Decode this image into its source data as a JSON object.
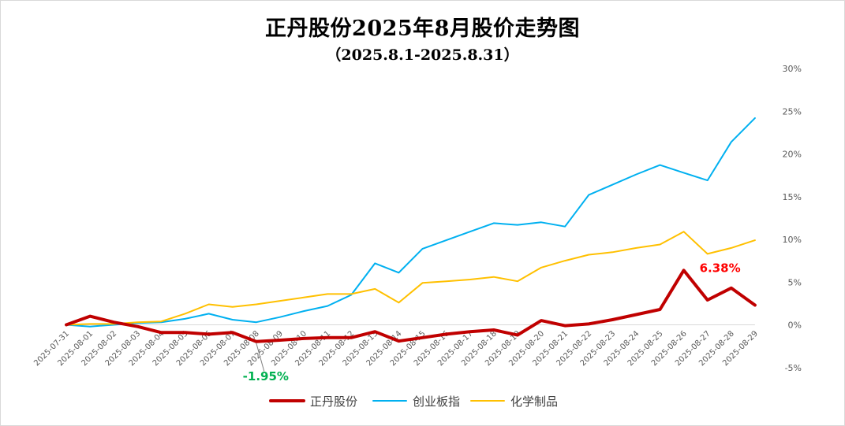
{
  "chart_data": {
    "type": "line",
    "title": "正丹股份2025年8月股价走势图",
    "subtitle": "（2025.8.1-2025.8.31）",
    "categories": [
      "2025-07-31",
      "2025-08-01",
      "2025-08-02",
      "2025-08-03",
      "2025-08-04",
      "2025-08-05",
      "2025-08-06",
      "2025-08-07",
      "2025-08-08",
      "2025-08-09",
      "2025-08-10",
      "2025-08-11",
      "2025-08-12",
      "2025-08-13",
      "2025-08-14",
      "2025-08-15",
      "2025-08-16",
      "2025-08-17",
      "2025-08-18",
      "2025-08-19",
      "2025-08-20",
      "2025-08-21",
      "2025-08-22",
      "2025-08-23",
      "2025-08-24",
      "2025-08-25",
      "2025-08-26",
      "2025-08-27",
      "2025-08-28",
      "2025-08-29"
    ],
    "y_ticks": [
      "30%",
      "25%",
      "20%",
      "15%",
      "10%",
      "5%",
      "0%",
      "-5%"
    ],
    "ylim": [
      -5,
      30
    ],
    "series": [
      {
        "name": "正丹股份",
        "color": "#C00000",
        "values": [
          0.0,
          1.0,
          0.3,
          -0.2,
          -0.9,
          -0.9,
          -1.1,
          -0.9,
          -1.95,
          -1.8,
          -1.6,
          -1.5,
          -1.5,
          -0.8,
          -1.9,
          -1.5,
          -1.1,
          -0.8,
          -0.6,
          -1.2,
          0.5,
          -0.1,
          0.1,
          0.6,
          1.2,
          1.8,
          6.38,
          2.9,
          4.3,
          2.3
        ]
      },
      {
        "name": "创业板指",
        "color": "#00B0F0",
        "values": [
          0.0,
          -0.2,
          0.0,
          0.2,
          0.3,
          0.7,
          1.3,
          0.6,
          0.3,
          0.9,
          1.6,
          2.2,
          3.5,
          7.2,
          6.1,
          8.9,
          9.9,
          10.9,
          11.9,
          11.7,
          12.0,
          11.5,
          15.2,
          16.4,
          17.6,
          18.7,
          17.8,
          16.9,
          21.4,
          24.2
        ]
      },
      {
        "name": "化学制品",
        "color": "#FFC000",
        "values": [
          0.0,
          0.1,
          0.1,
          0.3,
          0.4,
          1.3,
          2.4,
          2.1,
          2.4,
          2.8,
          3.2,
          3.6,
          3.6,
          4.2,
          2.6,
          4.9,
          5.1,
          5.3,
          5.6,
          5.1,
          6.7,
          7.5,
          8.2,
          8.5,
          9.0,
          9.4,
          10.9,
          8.3,
          9.0,
          9.9
        ]
      }
    ],
    "annotations": [
      {
        "text": "-1.95%",
        "category": "2025-08-08",
        "value": -1.95,
        "color": "#00B050"
      },
      {
        "text": "6.38%",
        "category": "2025-08-26",
        "value": 6.38,
        "color": "#FF0000"
      }
    ],
    "legend_position": "bottom",
    "grid": false
  }
}
